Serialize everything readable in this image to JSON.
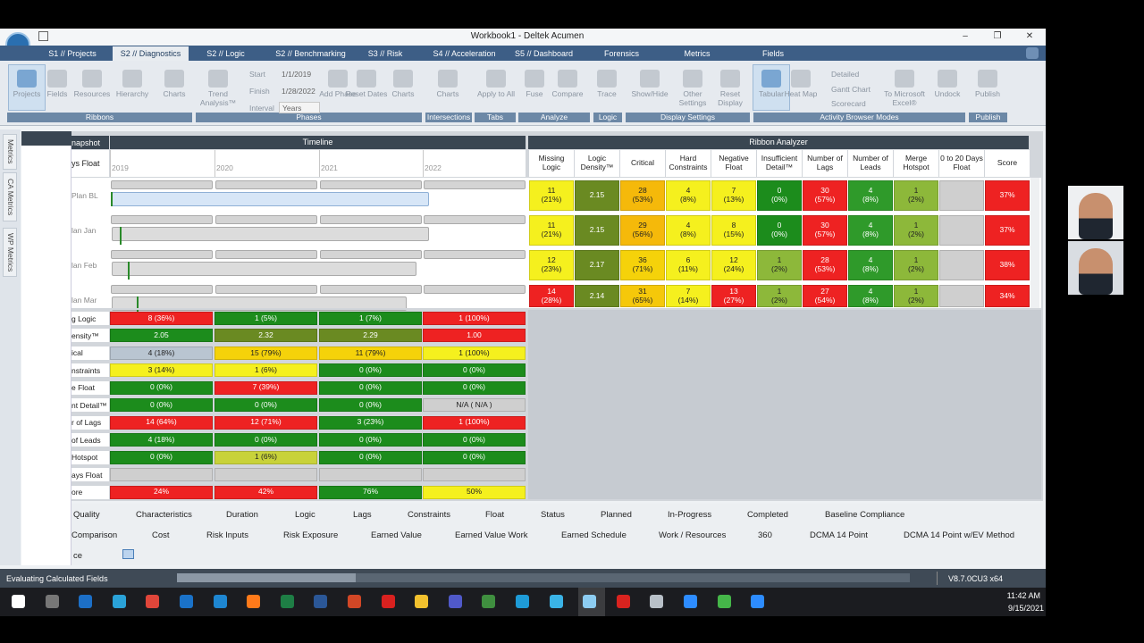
{
  "window": {
    "title": "Workbook1 - Deltek Acumen"
  },
  "tabs": [
    "S1 // Projects",
    "S2 // Diagnostics",
    "S2 // Logic",
    "S2 // Benchmarking",
    "S3 // Risk",
    "S4 // Acceleration",
    "S5 // Dashboard",
    "Forensics",
    "Metrics",
    "Fields"
  ],
  "active_tab": 1,
  "ribbon": {
    "groups": [
      "Ribbons",
      "Phases",
      "Intersections",
      "Tabs",
      "Analyze",
      "Logic",
      "Display Settings",
      "Activity Browser Modes",
      "Publish"
    ],
    "buttons": [
      "Projects",
      "Fields",
      "Resources",
      "Hierarchy",
      "Charts",
      "Trend Analysis™",
      "Add Phase",
      "Reset Dates",
      "Charts",
      "Charts",
      "Apply to All",
      "Fuse",
      "Compare",
      "Trace",
      "Show/Hide",
      "Other Settings",
      "Reset Display",
      "Tabular",
      "Heat Map",
      "To Microsoft Excel®",
      "Undock",
      "Publish"
    ],
    "phase_fields": [
      [
        "Start",
        "1/1/2019"
      ],
      [
        "Finish",
        "1/28/2022"
      ],
      [
        "Interval",
        "Years"
      ]
    ],
    "view_options": [
      "Detailed",
      "Gantt Chart",
      "Scorecard"
    ]
  },
  "side_tabs": [
    "Metrics",
    "CA Metrics",
    "WP Metrics"
  ],
  "grid": {
    "snapshot_header": "napshot",
    "timeline_header": "Timeline",
    "float_label": "ys Float",
    "years": [
      "2019",
      "2020",
      "2021",
      "2022"
    ],
    "row_labels": [
      "Plan BL",
      "lan Jan",
      "lan Feb",
      "lan Mar"
    ]
  },
  "ribbon_analyzer": {
    "title": "Ribbon Analyzer",
    "columns": [
      "Missing Logic",
      "Logic Density™",
      "Critical",
      "Hard Constraints",
      "Negative Float",
      "Insufficient Detail™",
      "Number of Lags",
      "Number of Leads",
      "Merge Hotspot",
      "0 to 20 Days Float",
      "Score"
    ],
    "rows": [
      {
        "cells": [
          {
            "text": "11\n(21%)",
            "color": "#f5f01e"
          },
          {
            "text": "2.15",
            "color": "#6a8a22"
          },
          {
            "text": "28\n(53%)",
            "color": "#f5b90a"
          },
          {
            "text": "4\n(8%)",
            "color": "#f5f01e"
          },
          {
            "text": "7\n(13%)",
            "color": "#f5f01e"
          },
          {
            "text": "0\n(0%)",
            "color": "#1c8c1c"
          },
          {
            "text": "30\n(57%)",
            "color": "#ee2222"
          },
          {
            "text": "4\n(8%)",
            "color": "#2f9a2a"
          },
          {
            "text": "1\n(2%)",
            "color": "#8db83a"
          },
          {
            "text": null,
            "color": "#cfcfcf"
          },
          {
            "text": "37%",
            "color": "#ee2222"
          }
        ]
      },
      {
        "cells": [
          {
            "text": "11\n(21%)",
            "color": "#f5f01e"
          },
          {
            "text": "2.15",
            "color": "#6a8a22"
          },
          {
            "text": "29\n(56%)",
            "color": "#f5b90a"
          },
          {
            "text": "4\n(8%)",
            "color": "#f5f01e"
          },
          {
            "text": "8\n(15%)",
            "color": "#f5f01e"
          },
          {
            "text": "0\n(0%)",
            "color": "#1c8c1c"
          },
          {
            "text": "30\n(57%)",
            "color": "#ee2222"
          },
          {
            "text": "4\n(8%)",
            "color": "#2f9a2a"
          },
          {
            "text": "1\n(2%)",
            "color": "#8db83a"
          },
          {
            "text": null,
            "color": "#cfcfcf"
          },
          {
            "text": "37%",
            "color": "#ee2222"
          }
        ]
      },
      {
        "cells": [
          {
            "text": "12\n(23%)",
            "color": "#f5f01e"
          },
          {
            "text": "2.17",
            "color": "#6a8a22"
          },
          {
            "text": "36\n(71%)",
            "color": "#f5d20a"
          },
          {
            "text": "6\n(11%)",
            "color": "#f5f01e"
          },
          {
            "text": "12\n(24%)",
            "color": "#f5f01e"
          },
          {
            "text": "1\n(2%)",
            "color": "#8db83a"
          },
          {
            "text": "28\n(53%)",
            "color": "#ee2222"
          },
          {
            "text": "4\n(8%)",
            "color": "#2f9a2a"
          },
          {
            "text": "1\n(2%)",
            "color": "#8db83a"
          },
          {
            "text": null,
            "color": "#cfcfcf"
          },
          {
            "text": "38%",
            "color": "#ee2222"
          }
        ]
      },
      {
        "cells": [
          {
            "text": "14\n(28%)",
            "color": "#ee2222"
          },
          {
            "text": "2.14",
            "color": "#6a8a22"
          },
          {
            "text": "31\n(65%)",
            "color": "#f5c80a"
          },
          {
            "text": "7\n(14%)",
            "color": "#f5f01e"
          },
          {
            "text": "13\n(27%)",
            "color": "#ee2222"
          },
          {
            "text": "1\n(2%)",
            "color": "#8db83a"
          },
          {
            "text": "27\n(54%)",
            "color": "#ee2222"
          },
          {
            "text": "4\n(8%)",
            "color": "#2f9a2a"
          },
          {
            "text": "1\n(2%)",
            "color": "#8db83a"
          },
          {
            "text": null,
            "color": "#cfcfcf"
          },
          {
            "text": "34%",
            "color": "#ee2222"
          }
        ]
      }
    ]
  },
  "metrics": {
    "labels": [
      "g Logic",
      "ensity™",
      "ical",
      "nstraints",
      "e Float",
      "nt Detail™",
      "r of Lags",
      "of Leads",
      "Hotspot",
      "ays Float",
      "ore"
    ],
    "rows": [
      [
        {
          "text": "8 (36%)",
          "color": "#ee2222"
        },
        {
          "text": "1 (5%)",
          "color": "#1c8c1c"
        },
        {
          "text": "1 (7%)",
          "color": "#1c8c1c"
        },
        {
          "text": "1 (100%)",
          "color": "#ee2222"
        }
      ],
      [
        {
          "text": "2.05",
          "color": "#1c8c1c"
        },
        {
          "text": "2.32",
          "color": "#6a8a22"
        },
        {
          "text": "2.29",
          "color": "#6a8a22"
        },
        {
          "text": "1.00",
          "color": "#ee2222"
        }
      ],
      [
        {
          "text": "4 (18%)",
          "color": "#b9c5d1"
        },
        {
          "text": "15 (79%)",
          "color": "#f5d20a"
        },
        {
          "text": "11 (79%)",
          "color": "#f5d20a"
        },
        {
          "text": "1 (100%)",
          "color": "#f5f01e"
        }
      ],
      [
        {
          "text": "3 (14%)",
          "color": "#f5f01e"
        },
        {
          "text": "1 (6%)",
          "color": "#f5f01e"
        },
        {
          "text": "0 (0%)",
          "color": "#1c8c1c"
        },
        {
          "text": "0 (0%)",
          "color": "#1c8c1c"
        }
      ],
      [
        {
          "text": "0 (0%)",
          "color": "#1c8c1c"
        },
        {
          "text": "7 (39%)",
          "color": "#ee2222"
        },
        {
          "text": "0 (0%)",
          "color": "#1c8c1c"
        },
        {
          "text": "0 (0%)",
          "color": "#1c8c1c"
        }
      ],
      [
        {
          "text": "0 (0%)",
          "color": "#1c8c1c"
        },
        {
          "text": "0 (0%)",
          "color": "#1c8c1c"
        },
        {
          "text": "0 (0%)",
          "color": "#1c8c1c"
        },
        {
          "text": "N/A ( N/A )",
          "color": "#cfcfcf"
        }
      ],
      [
        {
          "text": "14 (64%)",
          "color": "#ee2222"
        },
        {
          "text": "12 (71%)",
          "color": "#ee2222"
        },
        {
          "text": "3 (23%)",
          "color": "#1c8c1c"
        },
        {
          "text": "1 (100%)",
          "color": "#ee2222"
        }
      ],
      [
        {
          "text": "4 (18%)",
          "color": "#1c8c1c"
        },
        {
          "text": "0 (0%)",
          "color": "#1c8c1c"
        },
        {
          "text": "0 (0%)",
          "color": "#1c8c1c"
        },
        {
          "text": "0 (0%)",
          "color": "#1c8c1c"
        }
      ],
      [
        {
          "text": "0 (0%)",
          "color": "#1c8c1c"
        },
        {
          "text": "1 (6%)",
          "color": "#c8d23a"
        },
        {
          "text": "0 (0%)",
          "color": "#1c8c1c"
        },
        {
          "text": "0 (0%)",
          "color": "#1c8c1c"
        }
      ],
      [
        {
          "text": null,
          "color": "#cfcfcf"
        },
        {
          "text": null,
          "color": "#cfcfcf"
        },
        {
          "text": null,
          "color": "#cfcfcf"
        },
        {
          "text": null,
          "color": "#cfcfcf"
        }
      ],
      [
        {
          "text": "24%",
          "color": "#ee2222"
        },
        {
          "text": "42%",
          "color": "#ee2222"
        },
        {
          "text": "76%",
          "color": "#1c8c1c"
        },
        {
          "text": "50%",
          "color": "#f5f01e"
        }
      ]
    ]
  },
  "bottom_tabs": [
    [
      "Quality",
      "Characteristics",
      "Duration",
      "Logic",
      "Lags",
      "Constraints",
      "Float",
      "Status",
      "Planned",
      "In-Progress",
      "Completed",
      "Baseline Compliance"
    ],
    [
      "Comparison",
      "Cost",
      "Risk Inputs",
      "Risk Exposure",
      "Earned Value",
      "Earned Value Work",
      "Earned Schedule",
      "Work / Resources",
      "360",
      "DCMA 14 Point",
      "DCMA 14 Point w/EV Method"
    ],
    [
      "ce"
    ]
  ],
  "status": {
    "message": "Evaluating Calculated Fields",
    "version": "V8.7.0CU3 x64"
  },
  "taskbar": {
    "time": "11:42 AM",
    "date": "9/15/2021"
  }
}
